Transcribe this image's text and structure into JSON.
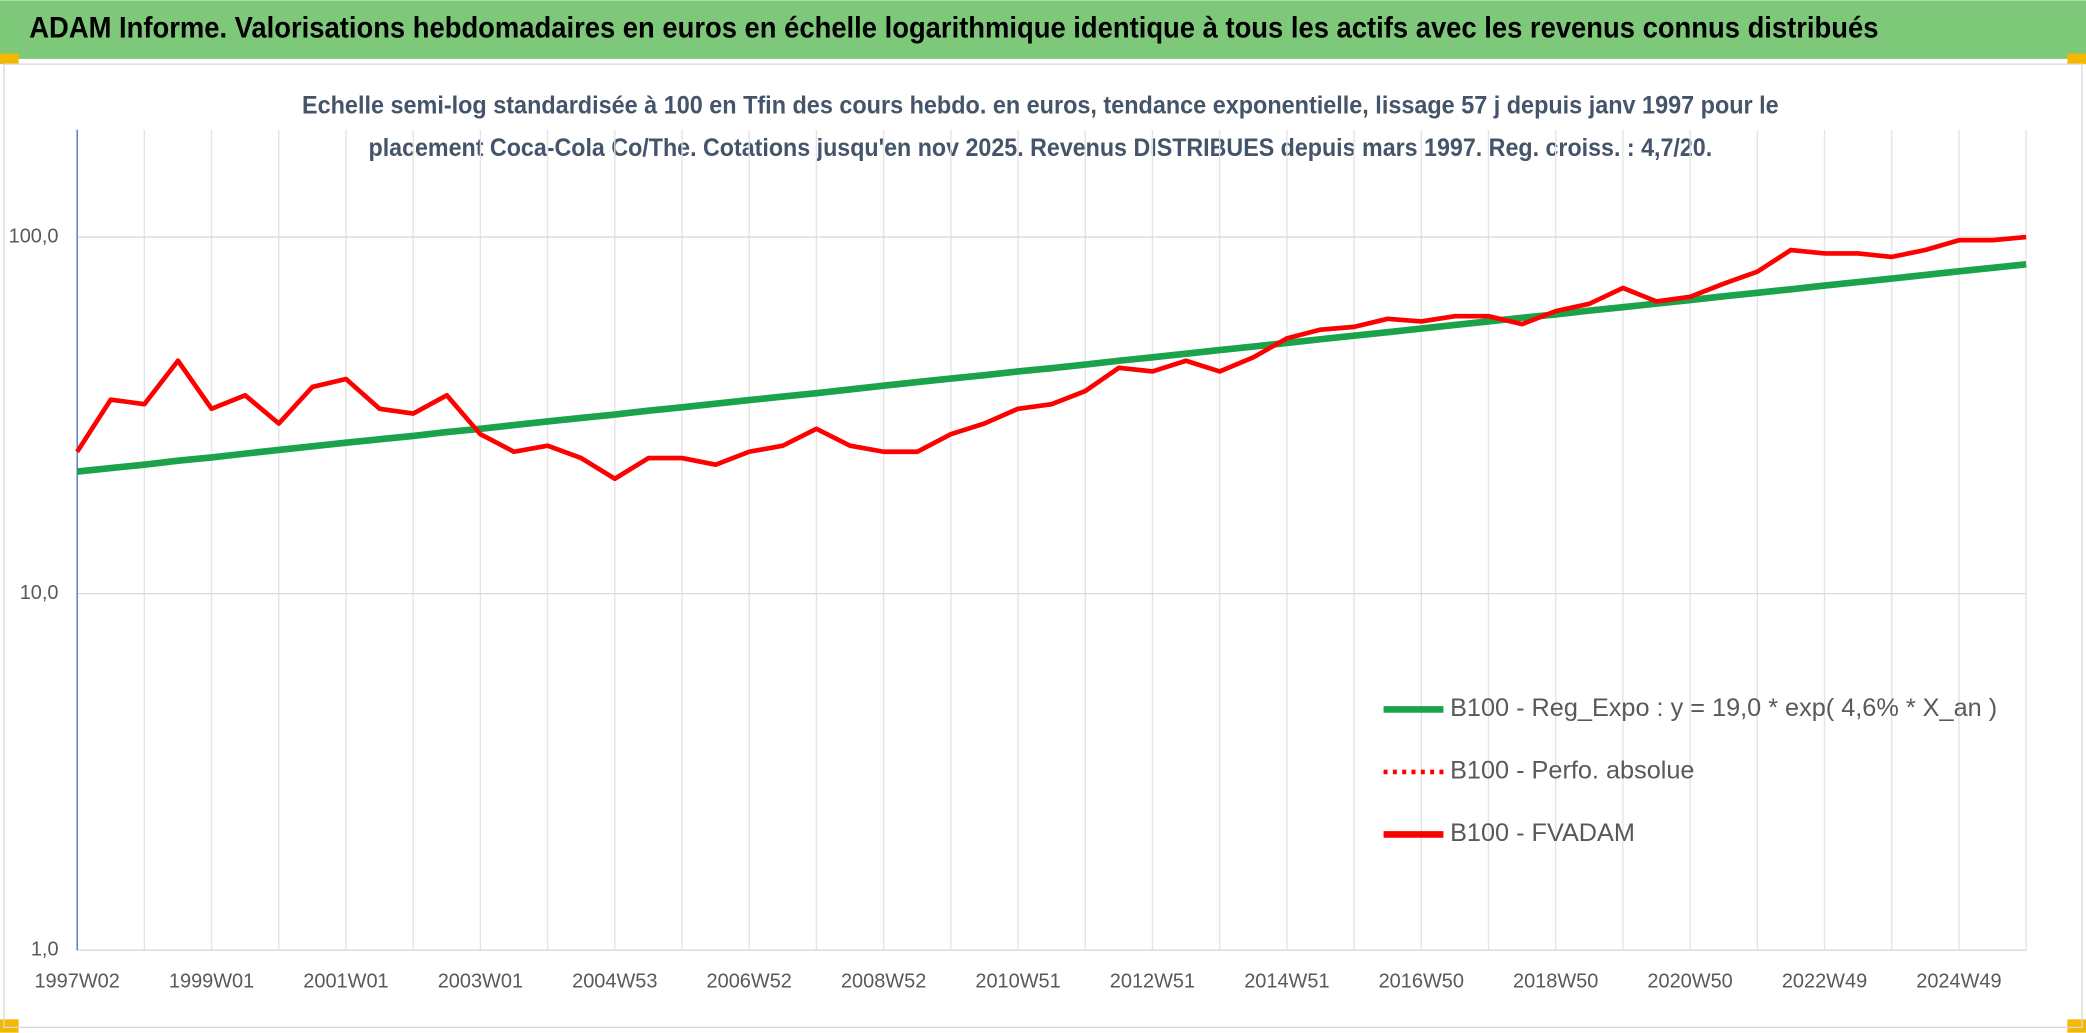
{
  "chart_data": {
    "type": "line",
    "title": "ADAM Informe. Valorisations hebdomadaires en euros en échelle logarithmique identique à tous les actifs avec les revenus connus distribués",
    "subtitle": [
      "Echelle semi-log standardisée à 100 en Tfin des cours hebdo. en euros, tendance exponentielle, lissage 57 j depuis janv 1997 pour le",
      "placement Coca-Cola Co/The. Cotations jusqu'en nov 2025. Revenus DISTRIBUES depuis mars 1997. Reg. croiss. : 4,7/20."
    ],
    "categories": [
      "1997W02",
      null,
      null,
      null,
      "1999W01",
      null,
      null,
      null,
      "2001W01",
      null,
      null,
      null,
      "2003W01",
      null,
      null,
      null,
      "2004W53",
      null,
      null,
      null,
      "2006W52",
      null,
      null,
      null,
      "2008W52",
      null,
      null,
      null,
      "2010W51",
      null,
      null,
      null,
      "2012W51",
      null,
      null,
      null,
      "2014W51",
      null,
      null,
      null,
      "2016W50",
      null,
      null,
      null,
      "2018W50",
      null,
      null,
      null,
      "2020W50",
      null,
      null,
      null,
      "2022W49",
      null,
      null,
      null,
      "2024W49",
      null,
      null
    ],
    "series": [
      {
        "name": "B100 - Reg_Expo : y = 19,0 * exp( 4,6% *  X_an )",
        "color": "#1aa34a",
        "style": "solid",
        "values": [
          22.0,
          22.5,
          23.0,
          23.6,
          24.1,
          24.7,
          25.3,
          25.9,
          26.5,
          27.1,
          27.7,
          28.4,
          29.0,
          29.7,
          30.4,
          31.1,
          31.8,
          32.6,
          33.3,
          34.1,
          34.9,
          35.7,
          36.5,
          37.4,
          38.3,
          39.2,
          40.1,
          41.0,
          42.0,
          42.9,
          43.9,
          45.0,
          46.0,
          47.1,
          48.2,
          49.3,
          50.5,
          51.7,
          52.9,
          54.1,
          55.4,
          56.7,
          58.0,
          59.4,
          60.7,
          62.2,
          63.6,
          65.1,
          66.6,
          68.2,
          69.8,
          71.4,
          73.1,
          74.8,
          76.5,
          78.3,
          80.2,
          82.0,
          83.9
        ]
      },
      {
        "name": "B100 - Perfo. absolue",
        "color": "#ff0000",
        "style": "dotted",
        "values": [
          25,
          35,
          34,
          45,
          33,
          36,
          30,
          38,
          40,
          33,
          32,
          36,
          28,
          25,
          26,
          24,
          21,
          24,
          24,
          23,
          25,
          26,
          29,
          26,
          25,
          25,
          28,
          30,
          33,
          34,
          37,
          43,
          42,
          45,
          42,
          46,
          52,
          55,
          56,
          59,
          58,
          60,
          60,
          57,
          62,
          65,
          72,
          66,
          68,
          74,
          80,
          92,
          90,
          90,
          88,
          92,
          98,
          98,
          100
        ]
      },
      {
        "name": "B100 - FVADAM",
        "color": "#ff0000",
        "style": "solid",
        "values": [
          25,
          35,
          34,
          45,
          33,
          36,
          30,
          38,
          40,
          33,
          32,
          36,
          28,
          25,
          26,
          24,
          21,
          24,
          24,
          23,
          25,
          26,
          29,
          26,
          25,
          25,
          28,
          30,
          33,
          34,
          37,
          43,
          42,
          45,
          42,
          46,
          52,
          55,
          56,
          59,
          58,
          60,
          60,
          57,
          62,
          65,
          72,
          66,
          68,
          74,
          80,
          92,
          90,
          90,
          88,
          92,
          98,
          98,
          100
        ]
      }
    ],
    "log_scale": true,
    "ylim": [
      1,
      200
    ],
    "yticks": [
      {
        "value": 1,
        "label": "1,0"
      },
      {
        "value": 10,
        "label": "10,0"
      },
      {
        "value": 100,
        "label": "100,0"
      }
    ],
    "grid": true,
    "legend": "lower right"
  }
}
